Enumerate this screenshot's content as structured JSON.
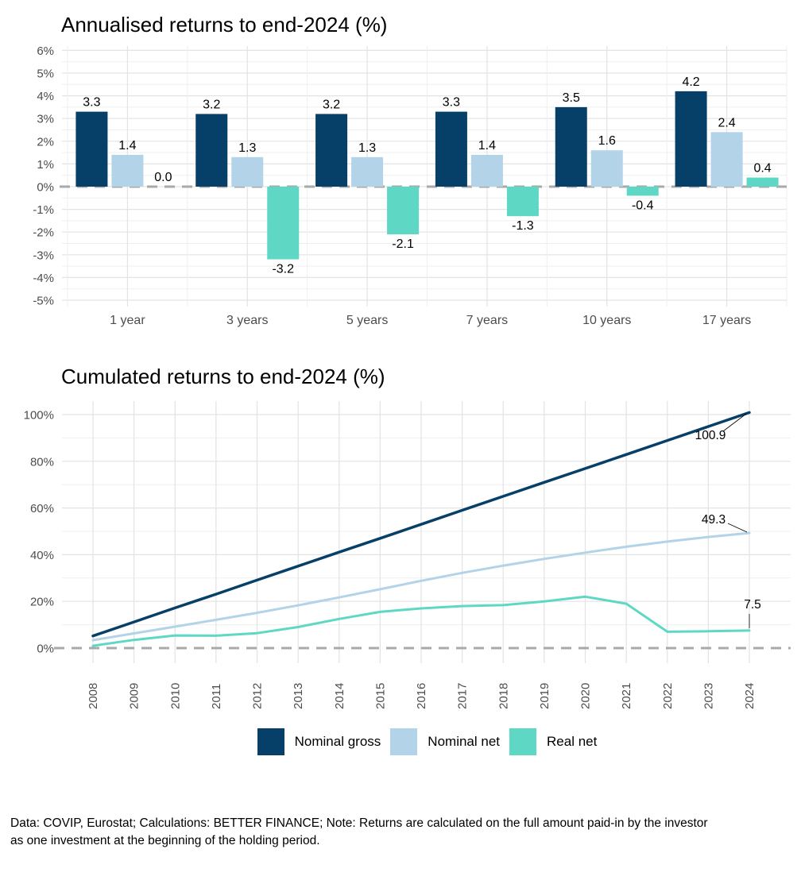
{
  "chart_data": [
    {
      "type": "bar",
      "title": "Annualised returns to end-2024 (%)",
      "categories": [
        "1 year",
        "3 years",
        "5 years",
        "7 years",
        "10 years",
        "17 years"
      ],
      "series": [
        {
          "name": "Nominal gross",
          "color": "#063f68",
          "values": [
            3.3,
            3.2,
            3.2,
            3.3,
            3.5,
            4.2
          ]
        },
        {
          "name": "Nominal net",
          "color": "#b3d3e9",
          "values": [
            1.4,
            1.3,
            1.3,
            1.4,
            1.6,
            2.4
          ]
        },
        {
          "name": "Real net",
          "color": "#5ed8c4",
          "values": [
            0.0,
            -3.2,
            -2.1,
            -1.3,
            -0.4,
            0.4
          ]
        }
      ],
      "ylim": [
        -5,
        6
      ],
      "yticks": [
        "6%",
        "5%",
        "4%",
        "3%",
        "2%",
        "1%",
        "0%",
        "-1%",
        "-2%",
        "-3%",
        "-4%",
        "-5%"
      ],
      "grid": true,
      "zero_line": "dashed",
      "value_labels": true
    },
    {
      "type": "line",
      "title": "Cumulated returns to end-2024 (%)",
      "x": [
        2008,
        2009,
        2010,
        2011,
        2012,
        2013,
        2014,
        2015,
        2016,
        2017,
        2018,
        2019,
        2020,
        2021,
        2022,
        2023,
        2024
      ],
      "series": [
        {
          "name": "Nominal gross",
          "color": "#063f68",
          "end_label": "100.9",
          "values": [
            5.2,
            11.2,
            17.2,
            23.1,
            29.1,
            35.1,
            41.1,
            47.0,
            53.0,
            59.0,
            65.0,
            71.0,
            76.9,
            82.9,
            88.9,
            94.9,
            100.9
          ]
        },
        {
          "name": "Nominal net",
          "color": "#b3d3e9",
          "end_label": "49.3",
          "values": [
            3.4,
            6.3,
            9.2,
            12.1,
            15.1,
            18.3,
            21.7,
            25.2,
            28.8,
            32.2,
            35.3,
            38.2,
            40.9,
            43.4,
            45.6,
            47.6,
            49.3
          ]
        },
        {
          "name": "Real net",
          "color": "#5ed8c4",
          "end_label": "7.5",
          "values": [
            1.0,
            3.5,
            5.4,
            5.3,
            6.4,
            9.0,
            12.5,
            15.5,
            17.0,
            18.0,
            18.4,
            20.0,
            22.0,
            19.0,
            7.0,
            7.2,
            7.5
          ]
        }
      ],
      "ylim": [
        0,
        100
      ],
      "yticks": [
        "100%",
        "80%",
        "60%",
        "40%",
        "20%",
        "0%"
      ],
      "grid": true,
      "zero_line": "dashed",
      "legend_position": "bottom"
    }
  ],
  "legend": {
    "items": [
      {
        "label": "Nominal gross",
        "color": "#063f68"
      },
      {
        "label": "Nominal net",
        "color": "#b3d3e9"
      },
      {
        "label": "Real net",
        "color": "#5ed8c4"
      }
    ]
  },
  "footer": {
    "note": "Data: COVIP, Eurostat; Calculations: BETTER FINANCE; Note: Returns are calculated on the full amount paid-in by the investor as one investment at the beginning of the holding period."
  }
}
